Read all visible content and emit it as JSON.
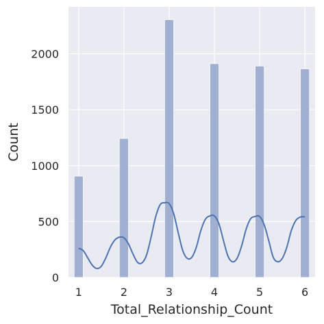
{
  "chart_data": {
    "type": "bar",
    "xlabel": "Total_Relationship_Count",
    "ylabel": "Count",
    "x": [
      1,
      2,
      3,
      4,
      5,
      6
    ],
    "values": [
      906,
      1243,
      2305,
      1912,
      1891,
      1866
    ],
    "xlim": [
      0.775,
      6.225
    ],
    "ylim": [
      0,
      2420
    ],
    "xticks": [
      "1",
      "2",
      "3",
      "4",
      "5",
      "6"
    ],
    "yticks": [
      "0",
      "500",
      "1000",
      "1500",
      "2000"
    ],
    "ytick_values": [
      0,
      500,
      1000,
      1500,
      2000
    ],
    "grid": true,
    "kde": {
      "x": [
        1.0,
        1.1,
        1.2,
        1.3,
        1.4,
        1.5,
        1.6,
        1.7,
        1.8,
        1.9,
        2.0,
        2.1,
        2.2,
        2.3,
        2.4,
        2.5,
        2.6,
        2.7,
        2.8,
        2.9,
        3.0,
        3.1,
        3.2,
        3.3,
        3.4,
        3.5,
        3.6,
        3.7,
        3.8,
        3.9,
        4.0,
        4.1,
        4.2,
        4.3,
        4.4,
        4.5,
        4.6,
        4.7,
        4.8,
        4.9,
        5.0,
        5.1,
        5.2,
        5.3,
        5.4,
        5.5,
        5.6,
        5.7,
        5.8,
        5.9,
        6.0
      ],
      "y": [
        260,
        240,
        175,
        110,
        80,
        100,
        175,
        270,
        335,
        360,
        355,
        300,
        210,
        135,
        130,
        200,
        360,
        540,
        650,
        668,
        660,
        570,
        400,
        240,
        170,
        180,
        270,
        420,
        520,
        550,
        550,
        480,
        330,
        190,
        140,
        170,
        280,
        430,
        525,
        545,
        545,
        470,
        330,
        180,
        140,
        170,
        270,
        420,
        510,
        540,
        542
      ]
    },
    "colors": {
      "background": "#eaeaf2",
      "grid": "#ffffff",
      "bar": "#a1b0d1",
      "bar_edge": "#ffffff",
      "kde": "#4c72b0",
      "text": "#262626"
    }
  }
}
